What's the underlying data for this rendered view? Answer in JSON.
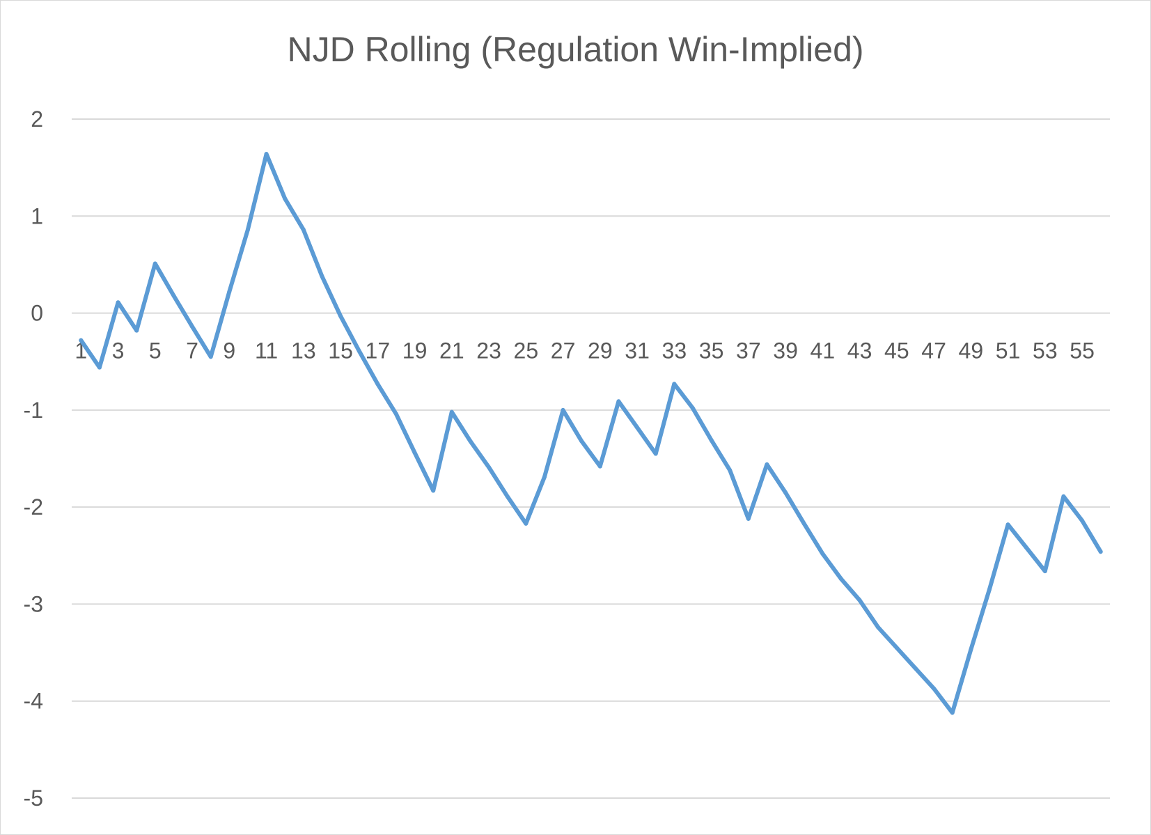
{
  "chart_data": {
    "type": "line",
    "title": "NJD Rolling (Regulation Win-Implied)",
    "xlabel": "",
    "ylabel": "",
    "ylim": [
      -5,
      2
    ],
    "y_ticks": [
      2,
      1,
      0,
      -1,
      -2,
      -3,
      -4,
      -5
    ],
    "x_tick_labels": [
      "1",
      "3",
      "5",
      "7",
      "9",
      "11",
      "13",
      "15",
      "17",
      "19",
      "21",
      "23",
      "25",
      "27",
      "29",
      "31",
      "33",
      "35",
      "37",
      "39",
      "41",
      "43",
      "45",
      "47",
      "49",
      "51",
      "53",
      "55"
    ],
    "grid": true,
    "legend": "none",
    "line_color": "#5b9bd5",
    "grid_color": "#d9d9d9",
    "series": [
      {
        "x": [
          1,
          2,
          3,
          4,
          5,
          6,
          7,
          8,
          9,
          10,
          11,
          12,
          13,
          14,
          15,
          16,
          17,
          18,
          19,
          20,
          21,
          22,
          23,
          24,
          25,
          26,
          27,
          28,
          29,
          30,
          31,
          32,
          33,
          34,
          35,
          36,
          37,
          38,
          39,
          40,
          41,
          42,
          43,
          44,
          45,
          46,
          47,
          48,
          49,
          50,
          51,
          52,
          53,
          54,
          55,
          56
        ],
        "values": [
          -0.28,
          -0.56,
          0.11,
          -0.18,
          0.51,
          0.18,
          -0.14,
          -0.45,
          0.22,
          0.86,
          1.64,
          1.18,
          0.86,
          0.38,
          -0.03,
          -0.39,
          -0.73,
          -1.04,
          -1.44,
          -1.83,
          -1.02,
          -1.32,
          -1.59,
          -1.89,
          -2.17,
          -1.69,
          -1.0,
          -1.32,
          -1.58,
          -0.91,
          -1.18,
          -1.45,
          -0.73,
          -0.98,
          -1.31,
          -1.62,
          -2.12,
          -1.56,
          -1.85,
          -2.17,
          -2.48,
          -2.74,
          -2.96,
          -3.24,
          -3.45,
          -3.66,
          -3.87,
          -4.12,
          -3.47,
          -2.85,
          -2.18,
          -2.42,
          -2.66,
          -1.89,
          -2.14,
          -2.46
        ]
      }
    ]
  }
}
